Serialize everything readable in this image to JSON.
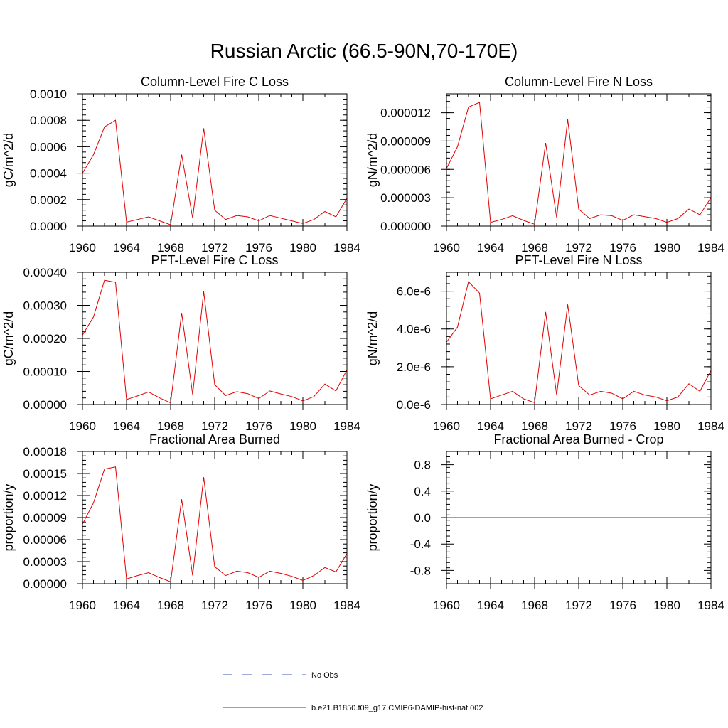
{
  "figure": {
    "title": "Russian Arctic (66.5-90N,70-170E)"
  },
  "legend": {
    "entries": [
      {
        "label": "No Obs",
        "color": "#4455bb",
        "style": "dashed"
      },
      {
        "label": "b.e21.B1850.f09_g17.CMIP6-DAMIP-hist-nat.002",
        "color": "#e00000",
        "style": "solid"
      }
    ]
  },
  "chart_data": [
    {
      "type": "line",
      "title": "Column-Level Fire C Loss",
      "ylabel": "gC/m^2/d",
      "xlim": [
        1960,
        1984
      ],
      "ylim": [
        0,
        0.001
      ],
      "xticks": [
        "1960",
        "1964",
        "1968",
        "1972",
        "1976",
        "1980",
        "1984"
      ],
      "yticks": [
        "0.0000",
        "0.0002",
        "0.0004",
        "0.0006",
        "0.0008",
        "0.0010"
      ],
      "yticks_values": [
        0,
        0.0002,
        0.0004,
        0.0006,
        0.0008,
        0.001
      ],
      "x": [
        1960,
        1961,
        1962,
        1963,
        1964,
        1965,
        1966,
        1967,
        1968,
        1969,
        1970,
        1971,
        1972,
        1973,
        1974,
        1975,
        1976,
        1977,
        1978,
        1979,
        1980,
        1981,
        1982,
        1983,
        1984
      ],
      "series": [
        {
          "color": "#e00000",
          "values": [
            0.0004,
            0.00054,
            0.00075,
            0.0008,
            3e-05,
            5e-05,
            7e-05,
            4e-05,
            1e-05,
            0.00054,
            6e-05,
            0.00074,
            0.00012,
            5e-05,
            8e-05,
            7e-05,
            4e-05,
            8e-05,
            6e-05,
            4e-05,
            2e-05,
            5e-05,
            0.00011,
            7e-05,
            0.00021
          ]
        }
      ]
    },
    {
      "type": "line",
      "title": "Column-Level Fire N Loss",
      "ylabel": "gN/m^2/d",
      "xlim": [
        1960,
        1984
      ],
      "ylim": [
        0,
        1.4e-05
      ],
      "xticks": [
        "1960",
        "1964",
        "1968",
        "1972",
        "1976",
        "1980",
        "1984"
      ],
      "yticks": [
        "0.000000",
        "0.000003",
        "0.000006",
        "0.000009",
        "0.000012"
      ],
      "yticks_values": [
        0,
        3e-06,
        6e-06,
        9e-06,
        1.2e-05
      ],
      "x": [
        1960,
        1961,
        1962,
        1963,
        1964,
        1965,
        1966,
        1967,
        1968,
        1969,
        1970,
        1971,
        1972,
        1973,
        1974,
        1975,
        1976,
        1977,
        1978,
        1979,
        1980,
        1981,
        1982,
        1983,
        1984
      ],
      "series": [
        {
          "color": "#e00000",
          "values": [
            6.1e-06,
            8.4e-06,
            1.26e-05,
            1.31e-05,
            4e-07,
            7e-07,
            1.1e-06,
            6e-07,
            2e-07,
            8.8e-06,
            9e-07,
            1.13e-05,
            1.8e-06,
            8e-07,
            1.2e-06,
            1.1e-06,
            6e-07,
            1.2e-06,
            1e-06,
            8e-07,
            4e-07,
            8e-07,
            1.8e-06,
            1.2e-06,
            3e-06
          ]
        }
      ]
    },
    {
      "type": "line",
      "title": "PFT-Level Fire C Loss",
      "ylabel": "gC/m^2/d",
      "xlim": [
        1960,
        1984
      ],
      "ylim": [
        0,
        0.0004
      ],
      "xticks": [
        "1960",
        "1964",
        "1968",
        "1972",
        "1976",
        "1980",
        "1984"
      ],
      "yticks": [
        "0.00000",
        "0.00010",
        "0.00020",
        "0.00030",
        "0.00040"
      ],
      "yticks_values": [
        0,
        0.0001,
        0.0002,
        0.0003,
        0.0004
      ],
      "x": [
        1960,
        1961,
        1962,
        1963,
        1964,
        1965,
        1966,
        1967,
        1968,
        1969,
        1970,
        1971,
        1972,
        1973,
        1974,
        1975,
        1976,
        1977,
        1978,
        1979,
        1980,
        1981,
        1982,
        1983,
        1984
      ],
      "series": [
        {
          "color": "#e00000",
          "values": [
            0.00021,
            0.000265,
            0.000376,
            0.00037,
            1.5e-05,
            2.6e-05,
            3.8e-05,
            2e-05,
            5e-06,
            0.000277,
            3e-05,
            0.000342,
            6e-05,
            2.7e-05,
            3.9e-05,
            3.3e-05,
            1.8e-05,
            4.1e-05,
            3.2e-05,
            2.4e-05,
            1.1e-05,
            2.4e-05,
            6.2e-05,
            4.1e-05,
            0.000105
          ]
        }
      ]
    },
    {
      "type": "line",
      "title": "PFT-Level Fire N Loss",
      "ylabel": "gN/m^2/d",
      "xlim": [
        1960,
        1984
      ],
      "ylim": [
        0,
        7e-06
      ],
      "xticks": [
        "1960",
        "1964",
        "1968",
        "1972",
        "1976",
        "1980",
        "1984"
      ],
      "yticks": [
        "0.0e-6",
        "2.0e-6",
        "4.0e-6",
        "6.0e-6"
      ],
      "yticks_values": [
        0,
        2e-06,
        4e-06,
        6e-06
      ],
      "x": [
        1960,
        1961,
        1962,
        1963,
        1964,
        1965,
        1966,
        1967,
        1968,
        1969,
        1970,
        1971,
        1972,
        1973,
        1974,
        1975,
        1976,
        1977,
        1978,
        1979,
        1980,
        1981,
        1982,
        1983,
        1984
      ],
      "series": [
        {
          "color": "#e00000",
          "values": [
            3.3e-06,
            4.1e-06,
            6.5e-06,
            5.9e-06,
            3e-07,
            5e-07,
            7e-07,
            3e-07,
            1e-07,
            4.9e-06,
            5e-07,
            5.3e-06,
            1e-06,
            5e-07,
            7e-07,
            6e-07,
            3e-07,
            7e-07,
            5e-07,
            4e-07,
            2e-07,
            4e-07,
            1.1e-06,
            7e-07,
            1.8e-06
          ]
        }
      ]
    },
    {
      "type": "line",
      "title": "Fractional Area Burned",
      "ylabel": "proportion/y",
      "xlim": [
        1960,
        1984
      ],
      "ylim": [
        0,
        0.00018
      ],
      "xticks": [
        "1960",
        "1964",
        "1968",
        "1972",
        "1976",
        "1980",
        "1984"
      ],
      "yticks": [
        "0.00000",
        "0.00003",
        "0.00006",
        "0.00009",
        "0.00012",
        "0.00015",
        "0.00018"
      ],
      "yticks_values": [
        0,
        3e-05,
        6e-05,
        9e-05,
        0.00012,
        0.00015,
        0.00018
      ],
      "x": [
        1960,
        1961,
        1962,
        1963,
        1964,
        1965,
        1966,
        1967,
        1968,
        1969,
        1970,
        1971,
        1972,
        1973,
        1974,
        1975,
        1976,
        1977,
        1978,
        1979,
        1980,
        1981,
        1982,
        1983,
        1984
      ],
      "series": [
        {
          "color": "#e00000",
          "values": [
            8.1e-05,
            0.00011,
            0.000156,
            0.000159,
            6.4e-06,
            1.1e-05,
            1.5e-05,
            8.3e-06,
            2.6e-06,
            0.000115,
            1.1e-05,
            0.000145,
            2.3e-05,
            1.1e-05,
            1.7e-05,
            1.5e-05,
            8.5e-06,
            1.7e-05,
            1.4e-05,
            1e-05,
            4.5e-06,
            1.1e-05,
            2.2e-05,
            1.6e-05,
            4.1e-05
          ]
        }
      ]
    },
    {
      "type": "line",
      "title": "Fractional Area Burned - Crop",
      "ylabel": "proportion/y",
      "xlim": [
        1960,
        1984
      ],
      "ylim": [
        -1,
        1
      ],
      "xticks": [
        "1960",
        "1964",
        "1968",
        "1972",
        "1976",
        "1980",
        "1984"
      ],
      "yticks": [
        "-0.8",
        "-0.4",
        "0.0",
        "0.4",
        "0.8"
      ],
      "yticks_values": [
        -0.8,
        -0.4,
        0,
        0.4,
        0.8
      ],
      "x": [
        1960,
        1961,
        1962,
        1963,
        1964,
        1965,
        1966,
        1967,
        1968,
        1969,
        1970,
        1971,
        1972,
        1973,
        1974,
        1975,
        1976,
        1977,
        1978,
        1979,
        1980,
        1981,
        1982,
        1983,
        1984
      ],
      "series": [
        {
          "color": "#e00000",
          "values": [
            0,
            0,
            0,
            0,
            0,
            0,
            0,
            0,
            0,
            0,
            0,
            0,
            0,
            0,
            0,
            0,
            0,
            0,
            0,
            0,
            0,
            0,
            0,
            0,
            0
          ]
        }
      ]
    }
  ]
}
